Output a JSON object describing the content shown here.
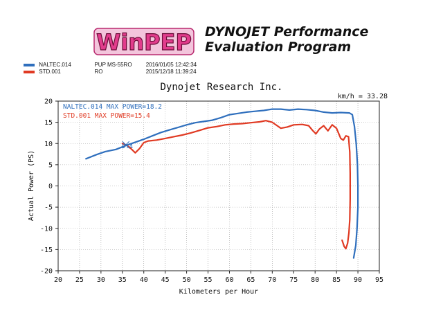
{
  "header": {
    "logo_text": "WinPEP",
    "title_line1": "DYNOJET Performance",
    "title_line2": "Evaluation Program"
  },
  "runs": [
    {
      "file": "NALTEC.014",
      "description": "PUP MS-55RO",
      "date": "2016/01/05",
      "time": "12:42:34",
      "color": "#2f6fbd"
    },
    {
      "file": "STD.001",
      "description": "RO",
      "date": "2015/12/18",
      "time": "11:39:24",
      "color": "#e03a23"
    }
  ],
  "company": "Dynojet Research Inc.",
  "colors": {
    "blue_series": "#2f6fbd",
    "red_series": "#e03a23",
    "logo_fill": "#e23c8c"
  },
  "chart_data": {
    "type": "line",
    "title": "Dynojet Research Inc.",
    "xlabel": "Kilometers per Hour",
    "ylabel": "Actual Power (PS)",
    "xlim": [
      20,
      95
    ],
    "ylim": [
      -20,
      20
    ],
    "xticks": [
      20,
      25,
      30,
      35,
      40,
      45,
      50,
      55,
      60,
      65,
      70,
      75,
      80,
      85,
      90,
      95
    ],
    "yticks": [
      -20,
      -15,
      -10,
      -5,
      0,
      5,
      10,
      15,
      20
    ],
    "grid": true,
    "top_right_label": "km/h = 33.28",
    "cursor_label": "9.4",
    "series": [
      {
        "name": "NALTEC.014",
        "legend_text": "NALTEC.014  MAX POWER=18.2",
        "max_power": 18.2,
        "color": "#2f6fbd",
        "points": [
          [
            26.5,
            6.4
          ],
          [
            29,
            7.4
          ],
          [
            31,
            8.1
          ],
          [
            33.5,
            8.6
          ],
          [
            36,
            9.6
          ],
          [
            38,
            10.3
          ],
          [
            40,
            11.0
          ],
          [
            42,
            11.8
          ],
          [
            44,
            12.6
          ],
          [
            46,
            13.2
          ],
          [
            48,
            13.8
          ],
          [
            50,
            14.4
          ],
          [
            52,
            14.9
          ],
          [
            54,
            15.2
          ],
          [
            56,
            15.5
          ],
          [
            58,
            16.1
          ],
          [
            60,
            16.8
          ],
          [
            62,
            17.1
          ],
          [
            64,
            17.4
          ],
          [
            66,
            17.6
          ],
          [
            68,
            17.8
          ],
          [
            70,
            18.1
          ],
          [
            72,
            18.1
          ],
          [
            74,
            17.9
          ],
          [
            76,
            18.1
          ],
          [
            78,
            18.0
          ],
          [
            80,
            17.8
          ],
          [
            82,
            17.4
          ],
          [
            84,
            17.2
          ],
          [
            86,
            17.3
          ],
          [
            88,
            17.2
          ],
          [
            88.7,
            16.8
          ],
          [
            89.2,
            14
          ],
          [
            89.6,
            10
          ],
          [
            89.9,
            5
          ],
          [
            90,
            0
          ],
          [
            90,
            -5
          ],
          [
            89.8,
            -10
          ],
          [
            89.5,
            -14
          ],
          [
            89,
            -17
          ]
        ]
      },
      {
        "name": "STD.001",
        "legend_text": "STD.001  MAX POWER=15.4",
        "max_power": 15.4,
        "color": "#e03a23",
        "points": [
          [
            35,
            10.0
          ],
          [
            36,
            9.6
          ],
          [
            37,
            8.8
          ],
          [
            38,
            7.8
          ],
          [
            39,
            8.8
          ],
          [
            40,
            10.2
          ],
          [
            41,
            10.6
          ],
          [
            43,
            10.8
          ],
          [
            45,
            11.2
          ],
          [
            47,
            11.6
          ],
          [
            49,
            12.0
          ],
          [
            51,
            12.5
          ],
          [
            53,
            13.1
          ],
          [
            55,
            13.7
          ],
          [
            57,
            14.0
          ],
          [
            59,
            14.4
          ],
          [
            61,
            14.6
          ],
          [
            63,
            14.7
          ],
          [
            65,
            14.9
          ],
          [
            67,
            15.1
          ],
          [
            68.5,
            15.4
          ],
          [
            70,
            15.0
          ],
          [
            71,
            14.3
          ],
          [
            72,
            13.6
          ],
          [
            73.5,
            13.9
          ],
          [
            75,
            14.4
          ],
          [
            77,
            14.5
          ],
          [
            78.5,
            14.2
          ],
          [
            79.5,
            13.0
          ],
          [
            80.2,
            12.3
          ],
          [
            81,
            13.4
          ],
          [
            82,
            14.2
          ],
          [
            83,
            13.0
          ],
          [
            84,
            14.4
          ],
          [
            85,
            13.6
          ],
          [
            86,
            11.2
          ],
          [
            86.6,
            10.8
          ],
          [
            87.2,
            11.8
          ],
          [
            87.8,
            11.6
          ],
          [
            88.1,
            8
          ],
          [
            88.2,
            3
          ],
          [
            88.2,
            -3
          ],
          [
            88.1,
            -8
          ],
          [
            87.9,
            -11
          ],
          [
            87.6,
            -13.5
          ],
          [
            87.2,
            -14.8
          ],
          [
            86.8,
            -14.3
          ],
          [
            86.3,
            -12.8
          ]
        ]
      }
    ]
  }
}
